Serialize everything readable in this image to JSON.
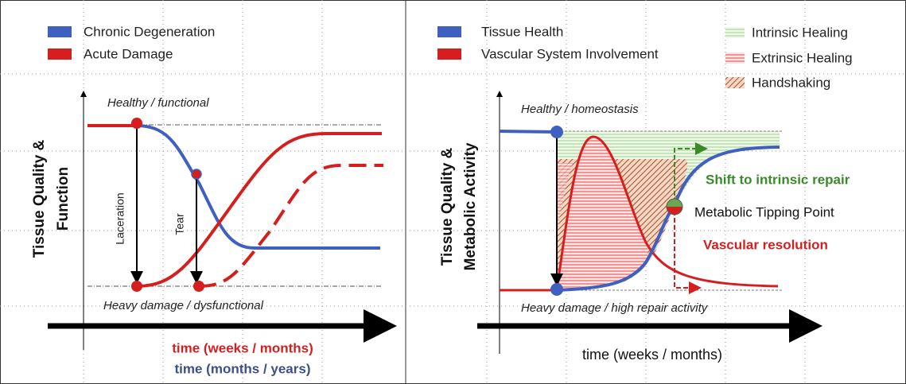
{
  "left": {
    "legend": [
      "Chronic Degeneration",
      "Acute Damage"
    ],
    "y_label": [
      "Tissue Quality &",
      "Function"
    ],
    "top_label": "Healthy / functional",
    "bottom_label": "Heavy damage /  dysfunctional",
    "arrows": [
      "Laceration",
      "Tear"
    ],
    "x_labels": [
      "time (weeks / months)",
      "time (months / years)"
    ]
  },
  "right": {
    "legend": [
      "Tissue Health",
      "Vascular System Involvement"
    ],
    "areas": [
      "Intrinsic Healing",
      "Extrinsic Healing",
      "Handshaking"
    ],
    "y_label": [
      "Tissue Quality &",
      "Metabolic Activity"
    ],
    "top_label": "Healthy / homeostasis",
    "bottom_label": "Heavy damage / high repair activity",
    "annotations": [
      "Shift to intrinsic repair",
      "Metabolic Tipping Point",
      "Vascular resolution"
    ],
    "x_label": "time (weeks / months)"
  }
}
